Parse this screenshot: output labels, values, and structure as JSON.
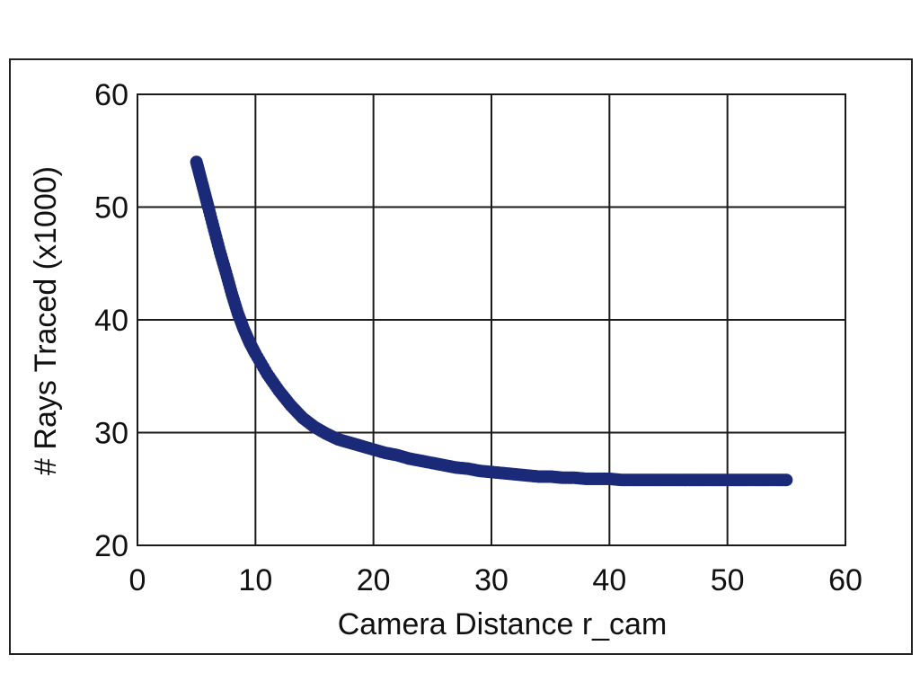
{
  "chart_data": {
    "type": "scatter",
    "title": "",
    "xlabel": "Camera Distance r_cam",
    "ylabel": "# Rays Traced (x1000)",
    "xlim": [
      0,
      60
    ],
    "ylim": [
      20,
      60
    ],
    "xticks": [
      0,
      10,
      20,
      30,
      40,
      50,
      60
    ],
    "yticks": [
      20,
      30,
      40,
      50,
      60
    ],
    "grid": true,
    "legend": "none",
    "series": [
      {
        "color": "#1b2a78",
        "x": [
          5,
          5.25,
          5.5,
          5.75,
          6,
          6.5,
          7,
          7.5,
          8,
          8.5,
          9,
          9.5,
          10,
          11,
          12,
          13,
          14,
          15,
          16,
          17,
          18,
          19,
          20,
          21,
          22,
          23,
          24,
          25,
          26,
          27,
          28,
          29,
          30,
          31,
          32,
          33,
          34,
          35,
          36,
          37,
          38,
          39,
          40,
          41,
          42,
          43,
          44,
          45,
          46,
          47,
          48,
          49,
          50,
          51,
          52,
          53,
          54,
          55
        ],
        "y": [
          54.0,
          53.0,
          52.0,
          51.0,
          50.0,
          48.0,
          46.0,
          44.2,
          42.3,
          40.6,
          39.2,
          38.0,
          37.0,
          35.2,
          33.7,
          32.4,
          31.3,
          30.5,
          29.9,
          29.4,
          29.1,
          28.8,
          28.5,
          28.2,
          28.0,
          27.7,
          27.5,
          27.3,
          27.1,
          26.9,
          26.8,
          26.6,
          26.5,
          26.4,
          26.3,
          26.2,
          26.1,
          26.1,
          26.0,
          26.0,
          25.9,
          25.9,
          25.9,
          25.8,
          25.8,
          25.8,
          25.8,
          25.8,
          25.8,
          25.8,
          25.8,
          25.8,
          25.8,
          25.8,
          25.8,
          25.8,
          25.8,
          25.8
        ]
      }
    ]
  }
}
